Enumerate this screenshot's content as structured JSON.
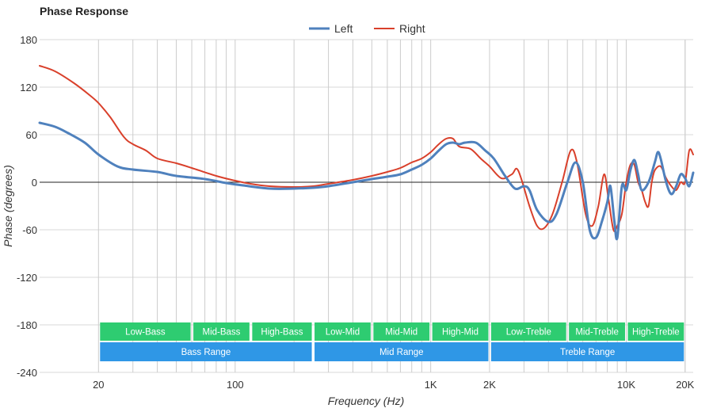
{
  "chart_data": {
    "type": "line",
    "title": "Phase Response",
    "xlabel": "Frequency (Hz)",
    "ylabel": "Phase (degrees)",
    "xscale": "log",
    "xlim": [
      10,
      22000
    ],
    "ylim": [
      -240,
      180
    ],
    "grid": true,
    "legend_position": "top-center",
    "x_ticks": [
      {
        "value": 20,
        "label": "20"
      },
      {
        "value": 100,
        "label": "100"
      },
      {
        "value": 1000,
        "label": "1K"
      },
      {
        "value": 2000,
        "label": "2K"
      },
      {
        "value": 10000,
        "label": "10K"
      },
      {
        "value": 20000,
        "label": "20K"
      }
    ],
    "y_ticks": [
      {
        "value": 180,
        "label": "180"
      },
      {
        "value": 120,
        "label": "120"
      },
      {
        "value": 60,
        "label": "60"
      },
      {
        "value": 0,
        "label": "0"
      },
      {
        "value": -60,
        "label": "-60"
      },
      {
        "value": -120,
        "label": "-120"
      },
      {
        "value": -180,
        "label": "-180"
      },
      {
        "value": -240,
        "label": "-240"
      }
    ],
    "series": [
      {
        "name": "Left",
        "color": "#4f81bd",
        "points": [
          [
            10,
            75
          ],
          [
            12,
            70
          ],
          [
            14,
            62
          ],
          [
            17,
            50
          ],
          [
            20,
            35
          ],
          [
            25,
            20
          ],
          [
            30,
            16
          ],
          [
            40,
            13
          ],
          [
            50,
            8
          ],
          [
            70,
            4
          ],
          [
            90,
            -1
          ],
          [
            110,
            -4
          ],
          [
            150,
            -8
          ],
          [
            200,
            -8
          ],
          [
            250,
            -7
          ],
          [
            300,
            -5
          ],
          [
            400,
            0
          ],
          [
            500,
            4
          ],
          [
            600,
            7
          ],
          [
            700,
            10
          ],
          [
            800,
            16
          ],
          [
            900,
            22
          ],
          [
            1000,
            30
          ],
          [
            1100,
            40
          ],
          [
            1200,
            48
          ],
          [
            1300,
            50
          ],
          [
            1400,
            48
          ],
          [
            1500,
            50
          ],
          [
            1700,
            50
          ],
          [
            1900,
            40
          ],
          [
            2100,
            30
          ],
          [
            2400,
            8
          ],
          [
            2700,
            -8
          ],
          [
            3000,
            -5
          ],
          [
            3200,
            -10
          ],
          [
            3500,
            -35
          ],
          [
            4000,
            -50
          ],
          [
            4400,
            -40
          ],
          [
            5000,
            0
          ],
          [
            5500,
            25
          ],
          [
            6000,
            0
          ],
          [
            6500,
            -60
          ],
          [
            7000,
            -70
          ],
          [
            7500,
            -50
          ],
          [
            8000,
            -25
          ],
          [
            8300,
            -5
          ],
          [
            8700,
            -50
          ],
          [
            9000,
            -70
          ],
          [
            9500,
            -5
          ],
          [
            10000,
            -10
          ],
          [
            10500,
            15
          ],
          [
            11000,
            28
          ],
          [
            11500,
            10
          ],
          [
            12000,
            -10
          ],
          [
            13000,
            0
          ],
          [
            14000,
            25
          ],
          [
            14500,
            38
          ],
          [
            15000,
            30
          ],
          [
            16000,
            0
          ],
          [
            17000,
            -15
          ],
          [
            18000,
            -5
          ],
          [
            19000,
            10
          ],
          [
            20000,
            5
          ],
          [
            21000,
            -5
          ],
          [
            22000,
            12
          ]
        ]
      },
      {
        "name": "Right",
        "color": "#d9402b",
        "points": [
          [
            10,
            147
          ],
          [
            12,
            140
          ],
          [
            15,
            125
          ],
          [
            18,
            110
          ],
          [
            20,
            100
          ],
          [
            23,
            82
          ],
          [
            27,
            57
          ],
          [
            30,
            48
          ],
          [
            35,
            40
          ],
          [
            40,
            30
          ],
          [
            50,
            24
          ],
          [
            60,
            18
          ],
          [
            80,
            8
          ],
          [
            100,
            2
          ],
          [
            120,
            -2
          ],
          [
            150,
            -5
          ],
          [
            200,
            -6
          ],
          [
            250,
            -5
          ],
          [
            300,
            -2
          ],
          [
            400,
            3
          ],
          [
            500,
            8
          ],
          [
            600,
            13
          ],
          [
            700,
            18
          ],
          [
            800,
            25
          ],
          [
            900,
            30
          ],
          [
            1000,
            38
          ],
          [
            1100,
            48
          ],
          [
            1200,
            55
          ],
          [
            1300,
            55
          ],
          [
            1400,
            45
          ],
          [
            1600,
            42
          ],
          [
            1800,
            30
          ],
          [
            2000,
            20
          ],
          [
            2300,
            5
          ],
          [
            2600,
            10
          ],
          [
            2800,
            15
          ],
          [
            3200,
            -30
          ],
          [
            3500,
            -55
          ],
          [
            3800,
            -58
          ],
          [
            4200,
            -40
          ],
          [
            4700,
            0
          ],
          [
            5200,
            40
          ],
          [
            5600,
            25
          ],
          [
            6200,
            -40
          ],
          [
            6700,
            -55
          ],
          [
            7200,
            -30
          ],
          [
            7700,
            10
          ],
          [
            8100,
            -20
          ],
          [
            8600,
            -60
          ],
          [
            9000,
            -55
          ],
          [
            9500,
            -40
          ],
          [
            10000,
            0
          ],
          [
            10500,
            22
          ],
          [
            11000,
            22
          ],
          [
            11500,
            0
          ],
          [
            12000,
            -10
          ],
          [
            12500,
            -25
          ],
          [
            13000,
            -30
          ],
          [
            13500,
            0
          ],
          [
            14000,
            15
          ],
          [
            15000,
            20
          ],
          [
            16000,
            5
          ],
          [
            17000,
            -5
          ],
          [
            18000,
            -10
          ],
          [
            19000,
            0
          ],
          [
            20000,
            0
          ],
          [
            21000,
            40
          ],
          [
            22000,
            35
          ]
        ]
      }
    ],
    "bands_row1": [
      {
        "label": "Low-Bass",
        "from": 20,
        "to": 60
      },
      {
        "label": "Mid-Bass",
        "from": 60,
        "to": 120
      },
      {
        "label": "High-Bass",
        "from": 120,
        "to": 250
      },
      {
        "label": "Low-Mid",
        "from": 250,
        "to": 500
      },
      {
        "label": "Mid-Mid",
        "from": 500,
        "to": 1000
      },
      {
        "label": "High-Mid",
        "from": 1000,
        "to": 2000
      },
      {
        "label": "Low-Treble",
        "from": 2000,
        "to": 5000
      },
      {
        "label": "Mid-Treble",
        "from": 5000,
        "to": 10000
      },
      {
        "label": "High-Treble",
        "from": 10000,
        "to": 20000
      }
    ],
    "bands_row2": [
      {
        "label": "Bass Range",
        "from": 20,
        "to": 250
      },
      {
        "label": "Mid Range",
        "from": 250,
        "to": 2000
      },
      {
        "label": "Treble Range",
        "from": 2000,
        "to": 20000
      }
    ],
    "band_colors": {
      "row1": "#2ecc71",
      "row2": "#2f97e6"
    }
  }
}
